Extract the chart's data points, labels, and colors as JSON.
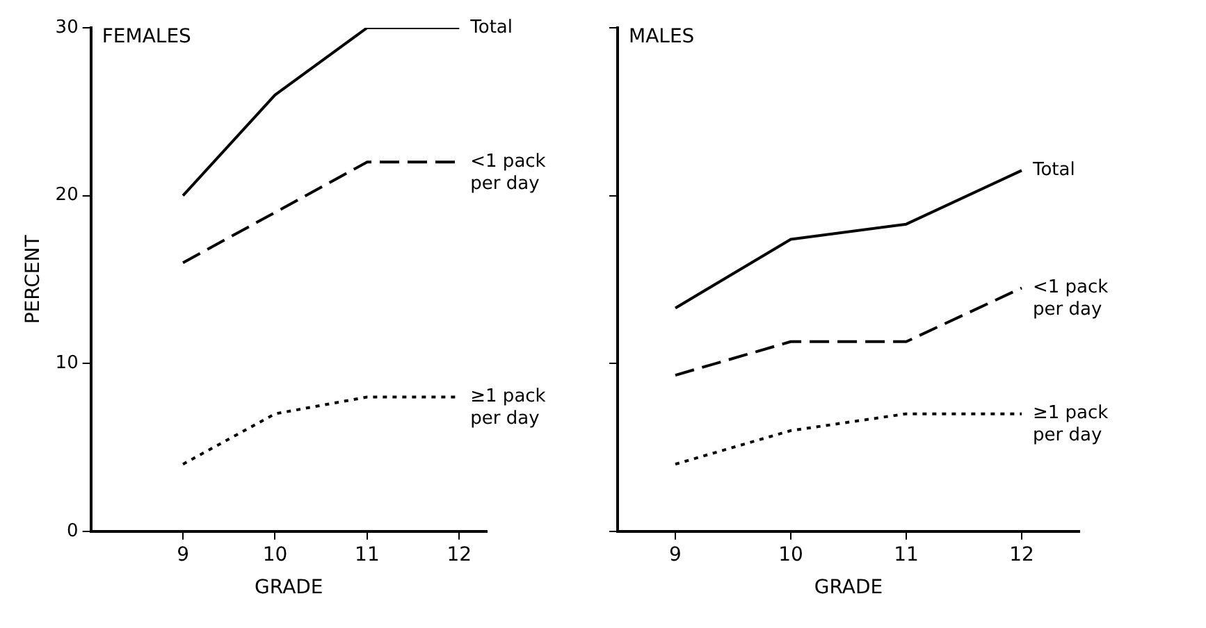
{
  "chart_data": [
    {
      "type": "line",
      "title": "FEMALES",
      "xlabel": "GRADE",
      "ylabel": "PERCENT",
      "x": [
        9,
        10,
        11,
        12
      ],
      "xlim": [
        8,
        12.3
      ],
      "xticks": [
        9,
        10,
        11,
        12
      ],
      "ylim": [
        0,
        30
      ],
      "yticks": [
        0,
        10,
        20,
        30
      ],
      "grid": false,
      "legend": false,
      "marker": "none",
      "series": [
        {
          "name": "Total",
          "color": "#000000",
          "line_style": "solid",
          "values": [
            20,
            26,
            30,
            30
          ]
        },
        {
          "name": "<1 pack per day",
          "color": "#000000",
          "line_style": "dashed",
          "values": [
            16,
            19,
            22,
            22
          ]
        },
        {
          "name": "≥1 pack per day",
          "color": "#000000",
          "line_style": "dotted",
          "values": [
            4,
            7,
            8,
            8
          ]
        }
      ]
    },
    {
      "type": "line",
      "title": "MALES",
      "xlabel": "GRADE",
      "x": [
        9,
        10,
        11,
        12
      ],
      "xlim": [
        8.5,
        12.5
      ],
      "xticks": [
        9,
        10,
        11,
        12
      ],
      "ylim": [
        0,
        30
      ],
      "yticks": [
        0,
        10,
        20,
        30
      ],
      "tick_labels": "x",
      "grid": false,
      "legend": false,
      "marker": "none",
      "series": [
        {
          "name": "Total",
          "color": "#000000",
          "line_style": "solid",
          "values": [
            13.3,
            17.4,
            18.3,
            21.5
          ]
        },
        {
          "name": "<1 pack per day",
          "color": "#000000",
          "line_style": "dashed",
          "values": [
            9.3,
            11.3,
            11.3,
            14.5
          ]
        },
        {
          "name": "≥1 pack per day",
          "color": "#000000",
          "line_style": "dotted",
          "values": [
            4,
            6,
            7,
            7
          ]
        }
      ]
    }
  ]
}
